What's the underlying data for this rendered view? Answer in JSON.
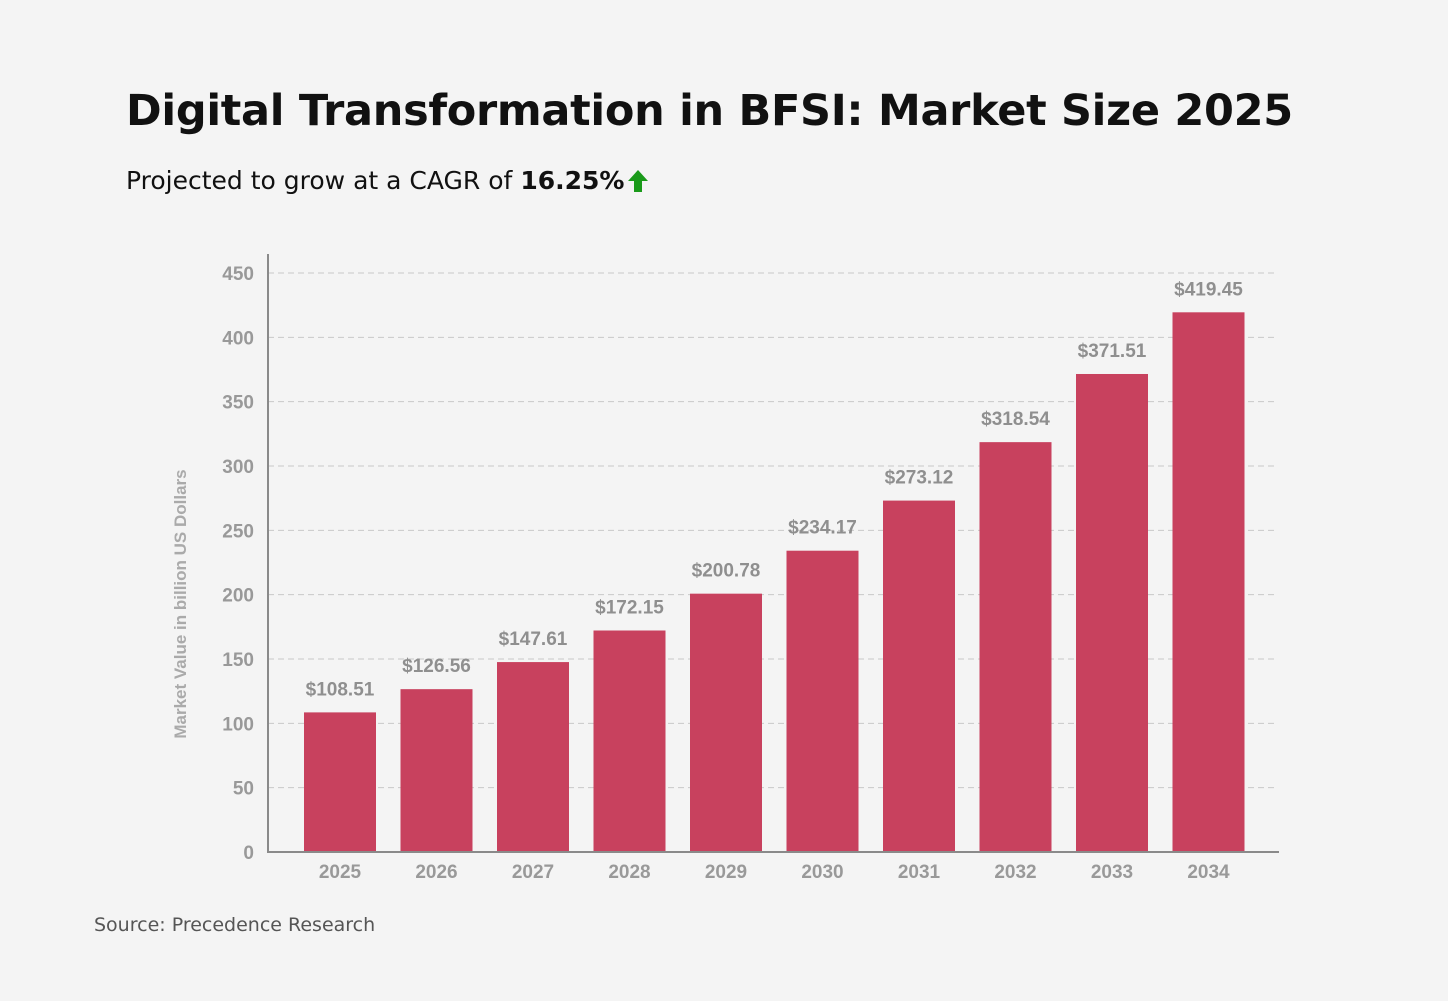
{
  "title": "Digital Transformation in BFSI: Market Size 2025",
  "subtitle": {
    "prefix": "Projected to grow at a CAGR of",
    "cagr": "16.25%",
    "arrow_icon": "up-arrow-icon",
    "arrow_color": "#1a9a1a"
  },
  "source": "Source: Precedence Research",
  "colors": {
    "bar": "#c8415e",
    "grid": "#c8c8c8",
    "axis": "#8a8a8a"
  },
  "chart_data": {
    "type": "bar",
    "title": "Digital Transformation in BFSI: Market Size 2025",
    "xlabel": "",
    "ylabel": "Market Value in billion US Dollars",
    "ylim": [
      0,
      450
    ],
    "yticks": [
      0,
      50,
      100,
      150,
      200,
      250,
      300,
      350,
      400,
      450
    ],
    "grid": true,
    "categories": [
      "2025",
      "2026",
      "2027",
      "2028",
      "2029",
      "2030",
      "2031",
      "2032",
      "2033",
      "2034"
    ],
    "values": [
      108.51,
      126.56,
      147.61,
      172.15,
      200.78,
      234.17,
      273.12,
      318.54,
      371.51,
      419.45
    ],
    "data_labels": [
      "$108.51",
      "$126.56",
      "$147.61",
      "$172.15",
      "$200.78",
      "$234.17",
      "$273.12",
      "$318.54",
      "$371.51",
      "$419.45"
    ]
  }
}
